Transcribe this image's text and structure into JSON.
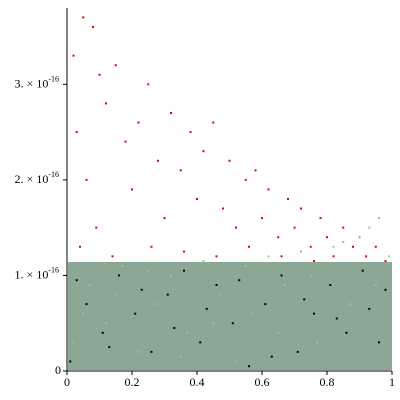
{
  "chart_data": {
    "type": "scatter",
    "xlim": [
      0,
      1
    ],
    "ylim": [
      0,
      3.83e-16
    ],
    "xticks": [
      0,
      0.2,
      0.4,
      0.6,
      0.8,
      1
    ],
    "yticks": [
      0,
      {
        "value": 1e-16,
        "label": "1. × 10",
        "exponent": "-16"
      },
      {
        "value": 2e-16,
        "label": "2. × 10",
        "exponent": "-16"
      },
      {
        "value": 3e-16,
        "label": "3. × 10",
        "exponent": "-16"
      }
    ],
    "series": [
      {
        "color": "#e00000",
        "x": [
          0.02,
          0.05,
          0.08,
          0.1,
          0.03,
          0.06,
          0.09,
          0.12,
          0.15,
          0.18,
          0.2,
          0.22,
          0.25,
          0.28,
          0.3,
          0.32,
          0.35,
          0.38,
          0.4,
          0.42,
          0.45,
          0.48,
          0.5,
          0.52,
          0.55,
          0.58,
          0.6,
          0.62,
          0.65,
          0.68,
          0.7,
          0.72,
          0.75,
          0.78,
          0.8,
          0.82,
          0.85,
          0.88,
          0.9,
          0.92,
          0.95,
          0.98,
          0.04,
          0.14,
          0.26,
          0.36,
          0.46,
          0.56,
          0.66,
          0.76
        ],
        "values": [
          3.3e-16,
          3.7e-16,
          3.6e-16,
          3.1e-16,
          2.5e-16,
          2e-16,
          1.5e-16,
          2.8e-16,
          3.2e-16,
          2.4e-16,
          1.9e-16,
          2.6e-16,
          3e-16,
          2.2e-16,
          1.6e-16,
          2.7e-16,
          2.1e-16,
          2.5e-16,
          1.8e-16,
          2.3e-16,
          2.6e-16,
          1.7e-16,
          2.2e-16,
          1.5e-16,
          2e-16,
          2.1e-16,
          1.6e-16,
          1.9e-16,
          1.4e-16,
          1.8e-16,
          1.5e-16,
          1.7e-16,
          1.3e-16,
          1.6e-16,
          1.4e-16,
          1.2e-16,
          1.5e-16,
          1.3e-16,
          1.4e-16,
          1.2e-16,
          1.3e-16,
          1.15e-16,
          1.3e-16,
          1.2e-16,
          1.3e-16,
          1.25e-16,
          1.2e-16,
          1.3e-16,
          1.2e-16,
          1.15e-16
        ]
      },
      {
        "color": "#7fd39a",
        "x": [
          0.02,
          0.07,
          0.12,
          0.17,
          0.22,
          0.27,
          0.32,
          0.37,
          0.42,
          0.47,
          0.52,
          0.57,
          0.62,
          0.67,
          0.72,
          0.77,
          0.82,
          0.87,
          0.9,
          0.93,
          0.96,
          0.99,
          0.05,
          0.15,
          0.25,
          0.35,
          0.45,
          0.55,
          0.65,
          0.75,
          0.85,
          0.95
        ],
        "values": [
          3e-17,
          9e-17,
          5e-17,
          1.1e-16,
          2e-17,
          7e-17,
          1e-16,
          4e-17,
          1.15e-16,
          8e-17,
          1e-17,
          6e-17,
          1.2e-16,
          9e-17,
          1.25e-16,
          3e-17,
          1.3e-16,
          7e-17,
          1.4e-16,
          1.5e-16,
          1.6e-16,
          1.2e-16,
          6e-17,
          8e-17,
          1.05e-16,
          1.5e-17,
          5e-17,
          1.1e-16,
          4e-17,
          1e-16,
          1.35e-16,
          9e-17
        ]
      },
      {
        "color": "#000000",
        "x": [
          0.01,
          0.06,
          0.11,
          0.16,
          0.21,
          0.26,
          0.31,
          0.36,
          0.41,
          0.46,
          0.51,
          0.56,
          0.61,
          0.66,
          0.71,
          0.76,
          0.81,
          0.86,
          0.91,
          0.96,
          0.03,
          0.13,
          0.23,
          0.33,
          0.43,
          0.53,
          0.63,
          0.73,
          0.83,
          0.93,
          0.98
        ],
        "values": [
          1e-17,
          7e-17,
          4e-17,
          1e-16,
          6e-17,
          2e-17,
          8e-17,
          1.05e-16,
          3e-17,
          9e-17,
          5e-17,
          5e-18,
          7e-17,
          1e-16,
          2e-17,
          6e-17,
          9e-17,
          4e-17,
          1.05e-16,
          3e-17,
          9.5e-17,
          2.5e-17,
          8.5e-17,
          4.5e-17,
          6.5e-17,
          9.5e-17,
          1.5e-17,
          7.5e-17,
          5.5e-17,
          6.5e-17,
          8.5e-17
        ]
      }
    ]
  }
}
